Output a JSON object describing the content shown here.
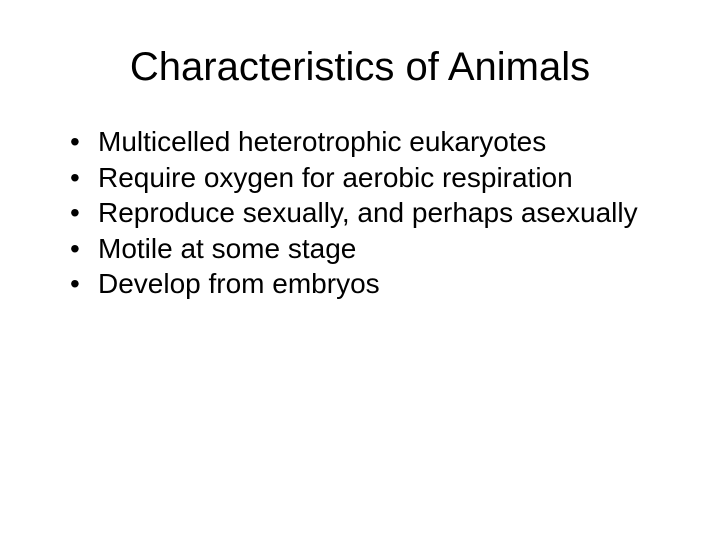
{
  "slide": {
    "title": "Characteristics of Animals",
    "bullets": [
      "Multicelled heterotrophic eukaryotes",
      "Require oxygen for aerobic respiration",
      "Reproduce sexually, and perhaps asexually",
      "Motile at some stage",
      "Develop from embryos"
    ],
    "style": {
      "background_color": "#ffffff",
      "text_color": "#000000",
      "title_fontsize": 40,
      "body_fontsize": 28,
      "font_family": "Arial"
    }
  }
}
